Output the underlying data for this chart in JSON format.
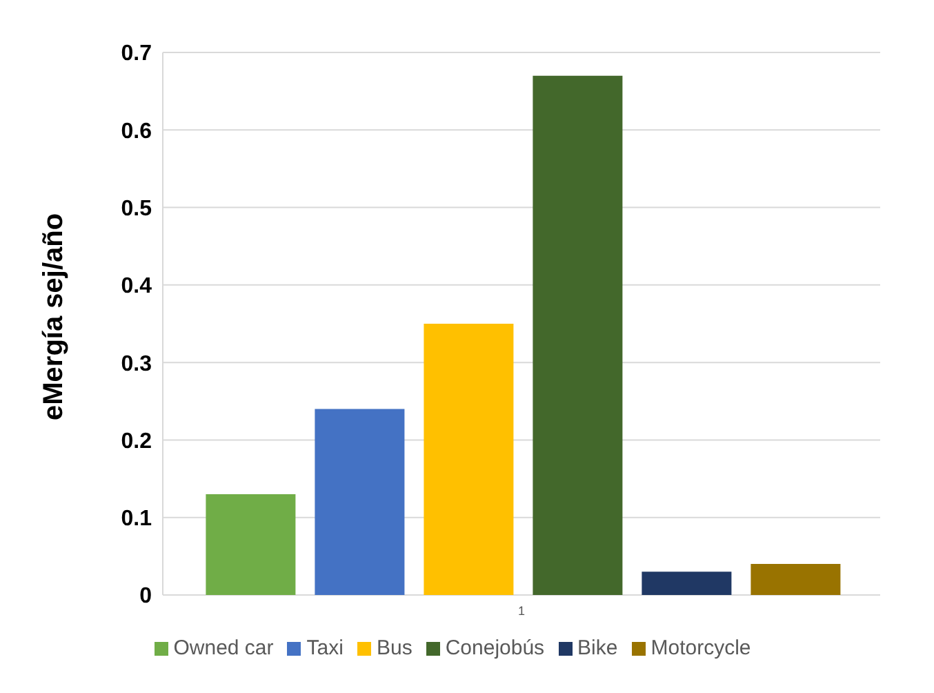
{
  "chart_data": {
    "type": "bar",
    "ylabel": "eMergía sej/año",
    "categories": [
      "1"
    ],
    "series": [
      {
        "name": "Owned car",
        "color": "#70ad47",
        "values": [
          0.13
        ]
      },
      {
        "name": "Taxi",
        "color": "#4472c4",
        "values": [
          0.24
        ]
      },
      {
        "name": "Bus",
        "color": "#ffc000",
        "values": [
          0.35
        ]
      },
      {
        "name": "Conejobús",
        "color": "#43682b",
        "values": [
          0.67
        ]
      },
      {
        "name": "Bike",
        "color": "#203864",
        "values": [
          0.03
        ]
      },
      {
        "name": "Motorcycle",
        "color": "#997300",
        "values": [
          0.04
        ]
      }
    ],
    "ylim": [
      0,
      0.7
    ],
    "yticks": [
      0,
      0.1,
      0.2,
      0.3,
      0.4,
      0.5,
      0.6,
      0.7
    ],
    "grid": "y",
    "legend": "bottom"
  }
}
